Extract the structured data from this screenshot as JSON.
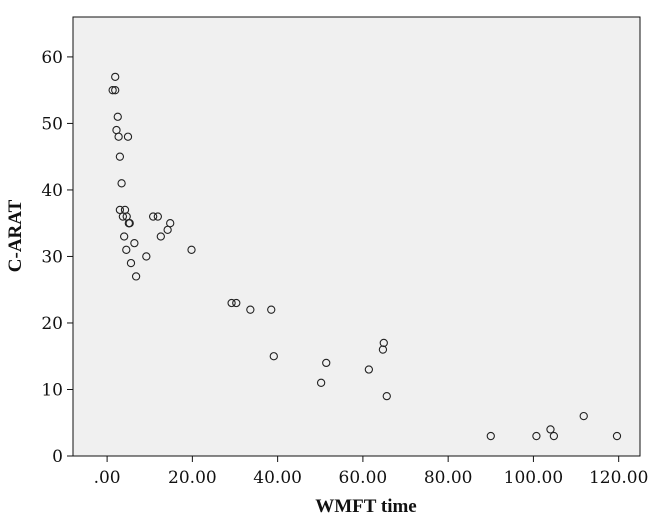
{
  "chart_data": {
    "type": "scatter",
    "xlabel": "WMFT time",
    "ylabel": "C-ARAT",
    "xlim": [
      -8,
      125
    ],
    "ylim": [
      0,
      66
    ],
    "xticks": [
      ".00",
      "20.00",
      "40.00",
      "60.00",
      "80.00",
      "100.00",
      "120.00"
    ],
    "xtick_values": [
      0,
      20,
      40,
      60,
      80,
      100,
      120
    ],
    "yticks": [
      "0",
      "10",
      "20",
      "30",
      "40",
      "50",
      "60"
    ],
    "ytick_values": [
      0,
      10,
      20,
      30,
      40,
      50,
      60
    ],
    "grid": false,
    "colors": {
      "plot_background": "#f0f0f0",
      "marker_stroke": "#222222"
    },
    "points": [
      {
        "x": 1.3,
        "y": 55
      },
      {
        "x": 1.9,
        "y": 55
      },
      {
        "x": 1.9,
        "y": 57
      },
      {
        "x": 2.2,
        "y": 49
      },
      {
        "x": 2.5,
        "y": 51
      },
      {
        "x": 2.7,
        "y": 48
      },
      {
        "x": 3.0,
        "y": 45
      },
      {
        "x": 3.4,
        "y": 41
      },
      {
        "x": 3.0,
        "y": 37
      },
      {
        "x": 4.2,
        "y": 37
      },
      {
        "x": 3.7,
        "y": 36
      },
      {
        "x": 4.6,
        "y": 36
      },
      {
        "x": 4.9,
        "y": 48
      },
      {
        "x": 5.1,
        "y": 35
      },
      {
        "x": 5.3,
        "y": 35
      },
      {
        "x": 4.0,
        "y": 33
      },
      {
        "x": 4.5,
        "y": 31
      },
      {
        "x": 5.6,
        "y": 29
      },
      {
        "x": 6.4,
        "y": 32
      },
      {
        "x": 6.8,
        "y": 27
      },
      {
        "x": 9.2,
        "y": 30
      },
      {
        "x": 10.8,
        "y": 36
      },
      {
        "x": 11.9,
        "y": 36
      },
      {
        "x": 12.6,
        "y": 33
      },
      {
        "x": 14.2,
        "y": 34
      },
      {
        "x": 14.8,
        "y": 35
      },
      {
        "x": 19.8,
        "y": 31
      },
      {
        "x": 29.2,
        "y": 23
      },
      {
        "x": 30.3,
        "y": 23
      },
      {
        "x": 33.6,
        "y": 22
      },
      {
        "x": 38.5,
        "y": 22
      },
      {
        "x": 39.1,
        "y": 15
      },
      {
        "x": 50.2,
        "y": 11
      },
      {
        "x": 51.4,
        "y": 14
      },
      {
        "x": 61.4,
        "y": 13
      },
      {
        "x": 64.7,
        "y": 16
      },
      {
        "x": 64.9,
        "y": 17
      },
      {
        "x": 65.6,
        "y": 9
      },
      {
        "x": 90.0,
        "y": 3
      },
      {
        "x": 100.7,
        "y": 3
      },
      {
        "x": 104.0,
        "y": 4
      },
      {
        "x": 104.8,
        "y": 3
      },
      {
        "x": 111.8,
        "y": 6
      },
      {
        "x": 119.6,
        "y": 3
      }
    ]
  }
}
